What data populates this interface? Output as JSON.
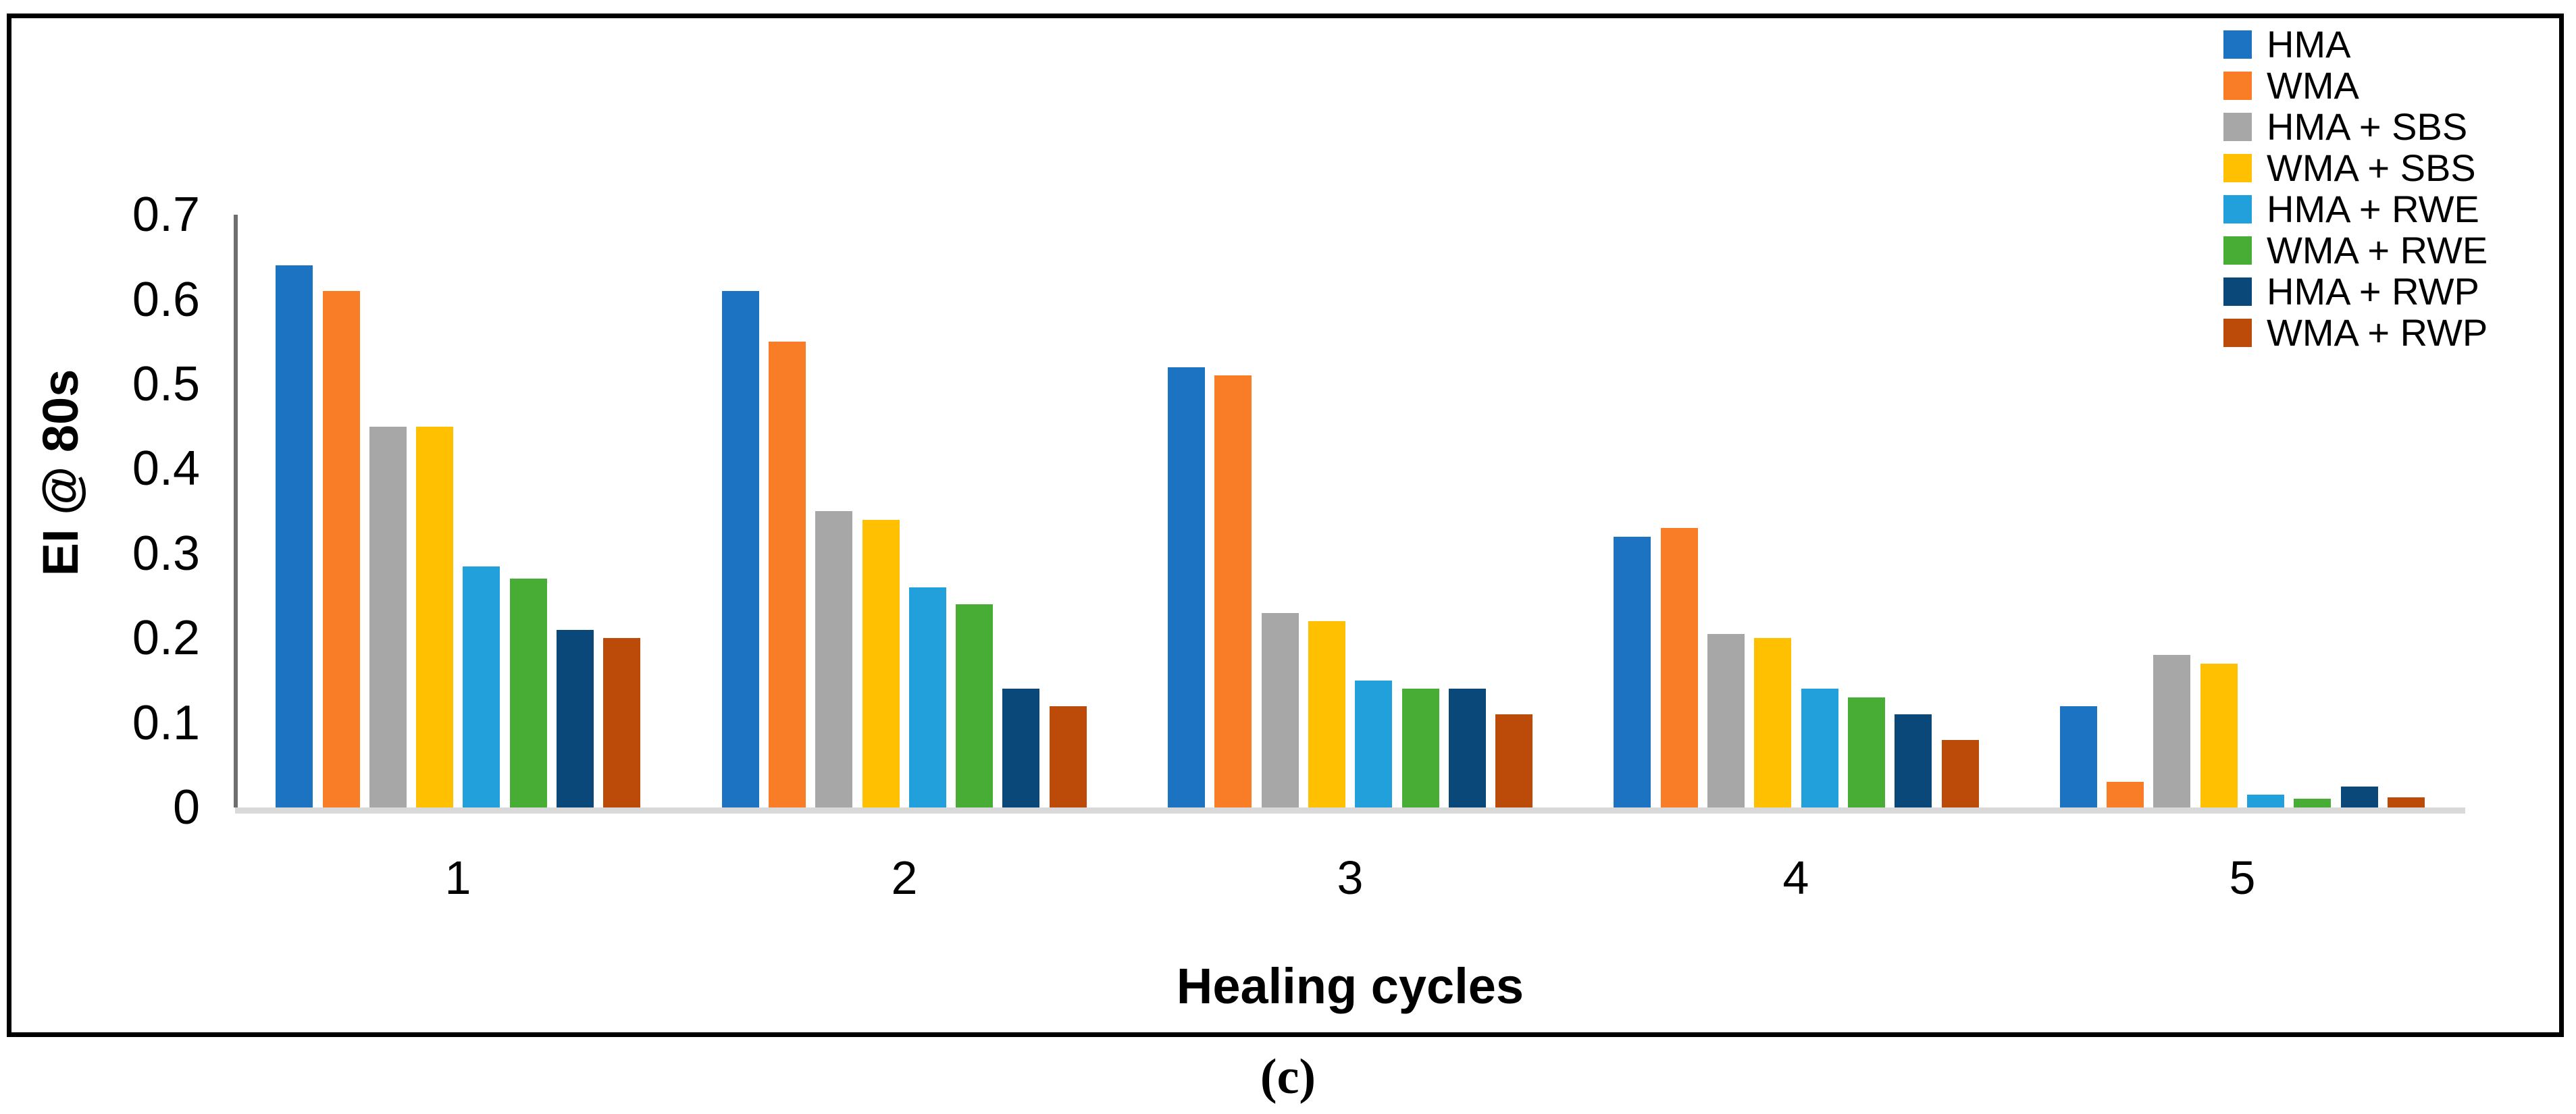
{
  "figure": {
    "caption": "(c)"
  },
  "chart_data": {
    "type": "bar",
    "title": "",
    "xlabel": "Healing cycles",
    "ylabel": "EI @ 80s",
    "categories": [
      "1",
      "2",
      "3",
      "4",
      "5"
    ],
    "y_ticks": [
      "0.7",
      "0.6",
      "0.5",
      "0.4",
      "0.3",
      "0.2",
      "0.1",
      "0"
    ],
    "ylim": [
      0,
      0.7
    ],
    "grid": false,
    "legend_position": "top-right",
    "series": [
      {
        "name": "HMA",
        "color": "#1B73C2",
        "values": [
          0.64,
          0.61,
          0.52,
          0.32,
          0.12
        ]
      },
      {
        "name": "WMA",
        "color": "#F97D27",
        "values": [
          0.61,
          0.55,
          0.51,
          0.33,
          0.03
        ]
      },
      {
        "name": "HMA + SBS",
        "color": "#A7A7A7",
        "values": [
          0.45,
          0.35,
          0.23,
          0.205,
          0.18
        ]
      },
      {
        "name": "WMA + SBS",
        "color": "#FEC000",
        "values": [
          0.45,
          0.34,
          0.22,
          0.2,
          0.17
        ]
      },
      {
        "name": "HMA + RWE",
        "color": "#22A0DB",
        "values": [
          0.285,
          0.26,
          0.15,
          0.14,
          0.015
        ]
      },
      {
        "name": "WMA + RWE",
        "color": "#47AD35",
        "values": [
          0.27,
          0.24,
          0.14,
          0.13,
          0.01
        ]
      },
      {
        "name": "HMA + RWP",
        "color": "#0A4879",
        "values": [
          0.21,
          0.14,
          0.14,
          0.11,
          0.025
        ]
      },
      {
        "name": "WMA + RWP",
        "color": "#BC4A08",
        "values": [
          0.2,
          0.12,
          0.11,
          0.08,
          0.012
        ]
      }
    ],
    "axis_line_color": "#6E6E6E",
    "baseline_color": "#D9D9D9",
    "border_color": "#000000"
  }
}
